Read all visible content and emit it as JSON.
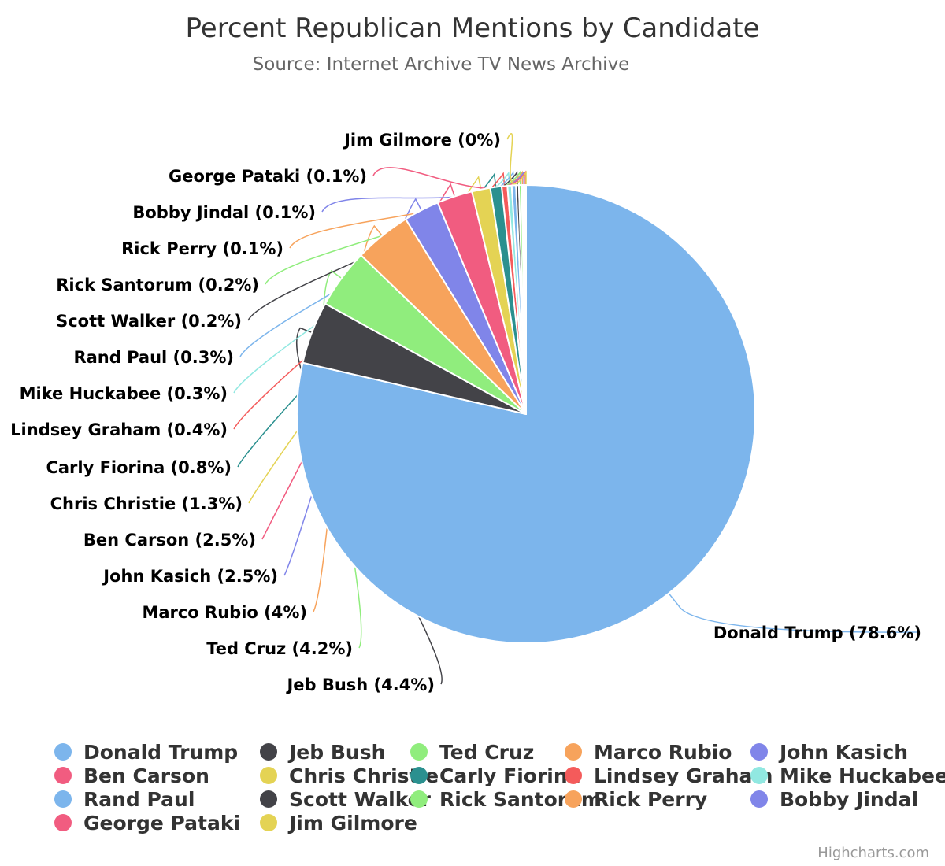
{
  "chart_data": {
    "type": "pie",
    "title": "Percent Republican Mentions by Candidate",
    "subtitle": "Source: Internet Archive TV News Archive",
    "legend_position": "bottom",
    "credit": "Highcharts.com",
    "series": [
      {
        "name": "Donald Trump",
        "value": 78.6,
        "label": "Donald Trump (78.6%)",
        "color": "#7cb5ec"
      },
      {
        "name": "Jeb Bush",
        "value": 4.4,
        "label": "Jeb Bush (4.4%)",
        "color": "#434348"
      },
      {
        "name": "Ted Cruz",
        "value": 4.2,
        "label": "Ted Cruz (4.2%)",
        "color": "#90ed7d"
      },
      {
        "name": "Marco Rubio",
        "value": 4.0,
        "label": "Marco Rubio (4%)",
        "color": "#f7a35c"
      },
      {
        "name": "John Kasich",
        "value": 2.5,
        "label": "John Kasich (2.5%)",
        "color": "#8085e9"
      },
      {
        "name": "Ben Carson",
        "value": 2.5,
        "label": "Ben Carson (2.5%)",
        "color": "#f15c80"
      },
      {
        "name": "Chris Christie",
        "value": 1.3,
        "label": "Chris Christie (1.3%)",
        "color": "#e4d354"
      },
      {
        "name": "Carly Fiorina",
        "value": 0.8,
        "label": "Carly Fiorina (0.8%)",
        "color": "#2b908f"
      },
      {
        "name": "Lindsey Graham",
        "value": 0.4,
        "label": "Lindsey Graham (0.4%)",
        "color": "#f45b5b"
      },
      {
        "name": "Mike Huckabee",
        "value": 0.3,
        "label": "Mike Huckabee (0.3%)",
        "color": "#91e8e1"
      },
      {
        "name": "Rand Paul",
        "value": 0.3,
        "label": "Rand Paul (0.3%)",
        "color": "#7cb5ec"
      },
      {
        "name": "Scott Walker",
        "value": 0.2,
        "label": "Scott Walker (0.2%)",
        "color": "#434348"
      },
      {
        "name": "Rick Santorum",
        "value": 0.2,
        "label": "Rick Santorum (0.2%)",
        "color": "#90ed7d"
      },
      {
        "name": "Rick Perry",
        "value": 0.1,
        "label": "Rick Perry (0.1%)",
        "color": "#f7a35c"
      },
      {
        "name": "Bobby Jindal",
        "value": 0.1,
        "label": "Bobby Jindal (0.1%)",
        "color": "#8085e9"
      },
      {
        "name": "George Pataki",
        "value": 0.1,
        "label": "George Pataki (0.1%)",
        "color": "#f15c80"
      },
      {
        "name": "Jim Gilmore",
        "value": 0.0,
        "label": "Jim Gilmore (0%)",
        "color": "#e4d354"
      }
    ]
  }
}
